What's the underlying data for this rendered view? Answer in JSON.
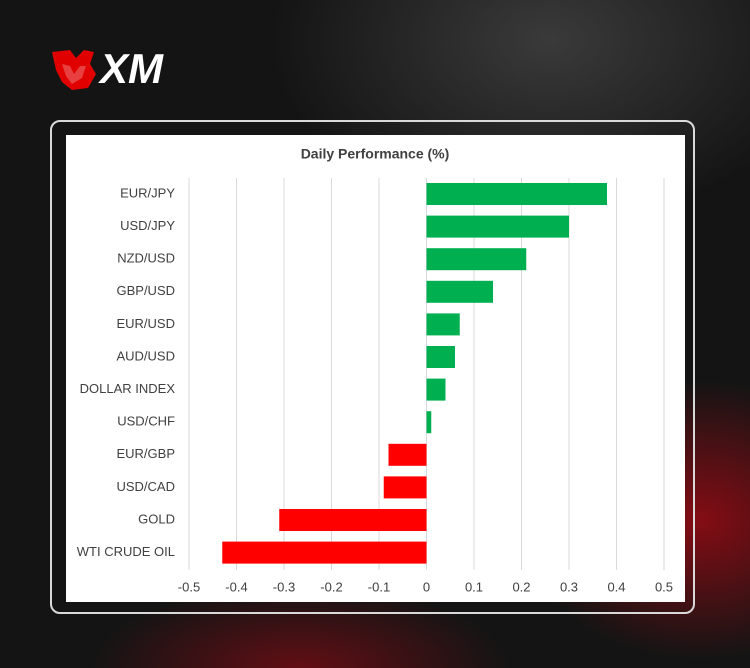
{
  "logo": "XM",
  "chart_data": {
    "type": "bar",
    "orientation": "horizontal",
    "title": "Daily Performance (%)",
    "categories": [
      "EUR/JPY",
      "USD/JPY",
      "NZD/USD",
      "GBP/USD",
      "EUR/USD",
      "AUD/USD",
      "DOLLAR INDEX",
      "USD/CHF",
      "EUR/GBP",
      "USD/CAD",
      "GOLD",
      "WTI CRUDE OIL"
    ],
    "values": [
      0.38,
      0.3,
      0.21,
      0.14,
      0.07,
      0.06,
      0.04,
      0.01,
      -0.08,
      -0.09,
      -0.31,
      -0.43
    ],
    "color_positive": "#00b050",
    "color_negative": "#ff0000",
    "xlim": [
      -0.5,
      0.5
    ],
    "xticks": [
      -0.5,
      -0.4,
      -0.3,
      -0.2,
      -0.1,
      0,
      0.1,
      0.2,
      0.3,
      0.4,
      0.5
    ],
    "grid": true
  }
}
